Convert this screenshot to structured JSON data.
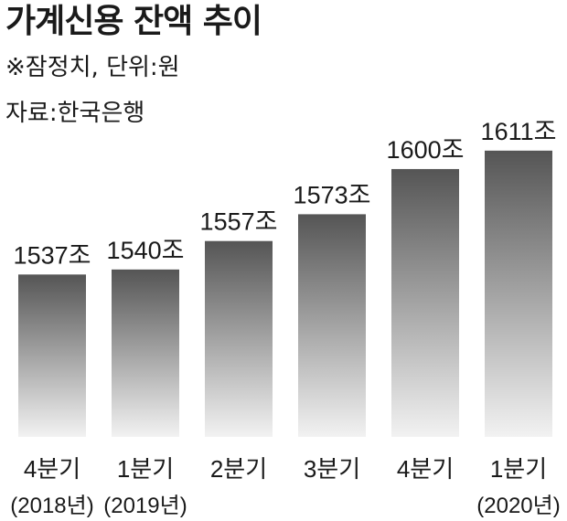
{
  "chart_data": {
    "type": "bar",
    "title": "가계신용 잔액 추이",
    "notes": [
      "※잠정치, 단위:원",
      "자료:한국은행"
    ],
    "categories": [
      "4분기",
      "1분기",
      "2분기",
      "3분기",
      "4분기",
      "1분기"
    ],
    "year_labels": [
      "(2018년)",
      "(2019년)",
      "",
      "",
      "",
      "(2020년)"
    ],
    "values": [
      1537,
      1540,
      1557,
      1573,
      1600,
      1611
    ],
    "value_labels": [
      "1537조",
      "1540조",
      "1557조",
      "1573조",
      "1600조",
      "1611조"
    ],
    "unit": "조",
    "ylim": [
      1440,
      1630
    ],
    "grid": false,
    "legend": "none",
    "colors": {
      "bar_top": "#555555",
      "bar_bottom": "#f2f2f2",
      "text": "#1a1a1a"
    }
  }
}
